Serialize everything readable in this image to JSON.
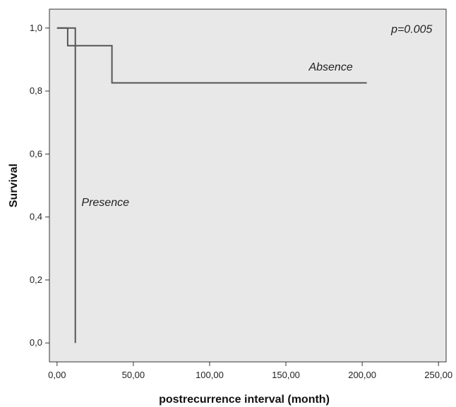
{
  "chart_data": {
    "type": "line",
    "subtype": "kaplan-meier step",
    "title": "",
    "xlabel": "postrecurrence interval (month)",
    "ylabel": "Survival",
    "xlim": [
      -5,
      255
    ],
    "ylim": [
      -0.06,
      1.06
    ],
    "x_ticks": [
      0,
      50,
      100,
      150,
      200,
      250
    ],
    "x_tick_labels": [
      "0,00",
      "50,00",
      "100,00",
      "150,00",
      "200,00",
      "250,00"
    ],
    "y_ticks": [
      0,
      0.2,
      0.4,
      0.6,
      0.8,
      1.0
    ],
    "y_tick_labels": [
      "0,0",
      "0,2",
      "0,4",
      "0,6",
      "0,8",
      "1,0"
    ],
    "grid": false,
    "plot_background": "#e8e8e8",
    "series": [
      {
        "name": "Absence",
        "color": "#555555",
        "points": [
          [
            0,
            1.0
          ],
          [
            7,
            1.0
          ],
          [
            7,
            0.944
          ],
          [
            36,
            0.944
          ],
          [
            36,
            0.826
          ],
          [
            203,
            0.826
          ]
        ]
      },
      {
        "name": "Presence",
        "color": "#555555",
        "points": [
          [
            0,
            1.0
          ],
          [
            12,
            1.0
          ],
          [
            12,
            0.0
          ]
        ]
      }
    ],
    "annotations": [
      {
        "text": "p=0.005",
        "x": 219,
        "y": 0.985
      },
      {
        "text": "Absence",
        "x": 165,
        "y": 0.865
      },
      {
        "text": "Presence",
        "x": 16,
        "y": 0.435
      }
    ]
  }
}
